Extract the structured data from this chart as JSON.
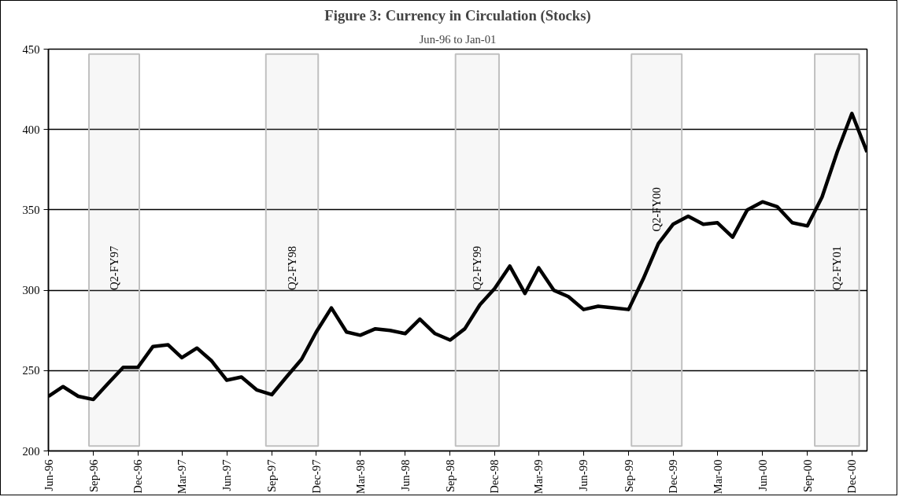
{
  "chart_data": {
    "type": "line",
    "title": "Figure 3: Currency in Circulation (Stocks)",
    "subtitle": "Jun-96 to Jan-01",
    "x": [
      "1996-06",
      "1996-07",
      "1996-08",
      "1996-09",
      "1996-10",
      "1996-11",
      "1996-12",
      "1997-01",
      "1997-02",
      "1997-03",
      "1997-04",
      "1997-05",
      "1997-06",
      "1997-07",
      "1997-08",
      "1997-09",
      "1997-10",
      "1997-11",
      "1997-12",
      "1998-01",
      "1998-02",
      "1998-03",
      "1998-04",
      "1998-05",
      "1998-06",
      "1998-07",
      "1998-08",
      "1998-09",
      "1998-10",
      "1998-11",
      "1998-12",
      "1999-01",
      "1999-02",
      "1999-03",
      "1999-04",
      "1999-05",
      "1999-06",
      "1999-07",
      "1999-08",
      "1999-09",
      "1999-10",
      "1999-11",
      "1999-12",
      "2000-01",
      "2000-02",
      "2000-03",
      "2000-04",
      "2000-05",
      "2000-06",
      "2000-07",
      "2000-08",
      "2000-09",
      "2000-10",
      "2000-11",
      "2000-12",
      "2001-01"
    ],
    "series": [
      {
        "color": "#000000",
        "values": [
          234,
          240,
          234,
          232,
          242,
          252,
          252,
          265,
          266,
          258,
          264,
          256,
          244,
          246,
          238,
          235,
          246,
          257,
          274,
          289,
          274,
          272,
          276,
          275,
          273,
          282,
          273,
          269,
          276,
          291,
          301,
          315,
          298,
          314,
          300,
          296,
          288,
          290,
          289,
          288,
          307,
          329,
          341,
          346,
          341,
          342,
          333,
          350,
          355,
          352,
          342,
          340,
          358,
          386,
          410,
          386
        ]
      }
    ],
    "xlim": [
      "1996-06",
      "2001-01"
    ],
    "xticks": [
      {
        "value": "1996-06",
        "label": "Jun-96"
      },
      {
        "value": "1996-09",
        "label": "Sep-96"
      },
      {
        "value": "1996-12",
        "label": "Dec-96"
      },
      {
        "value": "1997-03",
        "label": "Mar-97"
      },
      {
        "value": "1997-06",
        "label": "Jun-97"
      },
      {
        "value": "1997-09",
        "label": "Sep-97"
      },
      {
        "value": "1997-12",
        "label": "Dec-97"
      },
      {
        "value": "1998-03",
        "label": "Mar-98"
      },
      {
        "value": "1998-06",
        "label": "Jun-98"
      },
      {
        "value": "1998-09",
        "label": "Sep-98"
      },
      {
        "value": "1998-12",
        "label": "Dec-98"
      },
      {
        "value": "1999-03",
        "label": "Mar-99"
      },
      {
        "value": "1999-06",
        "label": "Jun-99"
      },
      {
        "value": "1999-09",
        "label": "Sep-99"
      },
      {
        "value": "1999-12",
        "label": "Dec-99"
      },
      {
        "value": "2000-03",
        "label": "Mar-00"
      },
      {
        "value": "2000-06",
        "label": "Jun-00"
      },
      {
        "value": "2000-09",
        "label": "Sep-00"
      },
      {
        "value": "2000-12",
        "label": "Dec-00"
      }
    ],
    "ylim": [
      200,
      450
    ],
    "yticks": [
      200,
      250,
      300,
      350,
      400,
      450
    ],
    "grid": "y",
    "marker": "none",
    "line_style": "solid",
    "bands": [
      {
        "axis": "x",
        "from": "1996-08-23",
        "to": "1996-12-04",
        "label": "Q2-FY97",
        "color": "#c0c0c0"
      },
      {
        "axis": "x",
        "from": "1997-08-20",
        "to": "1997-12-05",
        "label": "Q2-FY98",
        "color": "#c0c0c0"
      },
      {
        "axis": "x",
        "from": "1998-09-12",
        "to": "1998-12-10",
        "label": "Q2-FY99",
        "color": "#c0c0c0"
      },
      {
        "axis": "x",
        "from": "1999-09-07",
        "to": "1999-12-19",
        "label": "Q2-FY00",
        "color": "#c0c0c0"
      },
      {
        "axis": "x",
        "from": "2000-09-16",
        "to": "2000-12-16",
        "label": "Q2-FY01",
        "color": "#c0c0c0"
      }
    ]
  }
}
